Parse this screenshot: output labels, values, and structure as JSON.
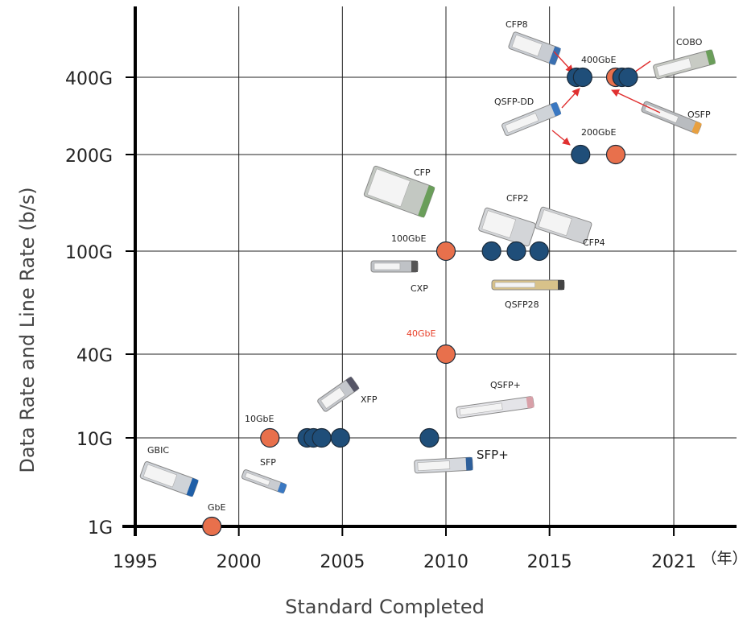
{
  "chart_data": {
    "type": "scatter",
    "xlabel": "Standard Completed",
    "ylabel": "Data Rate and Line Rate (b/s)",
    "x_unit_label": "（年）",
    "x_ticks": [
      1995,
      2000,
      2005,
      2010,
      2015,
      2021
    ],
    "y_categories": [
      "1G",
      "10G",
      "40G",
      "100G",
      "200G",
      "400G"
    ],
    "grid": true,
    "colors": {
      "ethernet": "#e8704c",
      "module": "#1f4e79",
      "arrow": "#e03030"
    },
    "series": [
      {
        "kind": "ethernet",
        "points": [
          {
            "x": 1998.7,
            "y": "1G"
          },
          {
            "x": 2001.5,
            "y": "10G"
          },
          {
            "x": 2010.0,
            "y": "40G"
          },
          {
            "x": 2010.0,
            "y": "100G"
          },
          {
            "x": 2018.2,
            "y": "200G"
          },
          {
            "x": 2018.2,
            "y": "400G"
          }
        ]
      },
      {
        "kind": "module",
        "points": [
          {
            "x": 2003.3,
            "y": "10G"
          },
          {
            "x": 2003.6,
            "y": "10G"
          },
          {
            "x": 2004.0,
            "y": "10G"
          },
          {
            "x": 2004.9,
            "y": "10G"
          },
          {
            "x": 2009.2,
            "y": "10G"
          },
          {
            "x": 2012.2,
            "y": "100G"
          },
          {
            "x": 2013.4,
            "y": "100G"
          },
          {
            "x": 2014.5,
            "y": "100G"
          },
          {
            "x": 2016.5,
            "y": "200G"
          },
          {
            "x": 2016.3,
            "y": "400G"
          },
          {
            "x": 2016.6,
            "y": "400G"
          },
          {
            "x": 2018.5,
            "y": "400G"
          },
          {
            "x": 2018.8,
            "y": "400G"
          }
        ]
      }
    ],
    "annotations": [
      {
        "text": "GbE",
        "style": "small"
      },
      {
        "text": "GBIC",
        "style": "small"
      },
      {
        "text": "SFP",
        "style": "small"
      },
      {
        "text": "10GbE",
        "style": "small"
      },
      {
        "text": "XFP",
        "style": "small"
      },
      {
        "text": "SFP+",
        "style": "big"
      },
      {
        "text": "QSFP+",
        "style": "small"
      },
      {
        "text": "40GbE",
        "style": "red"
      },
      {
        "text": "100GbE",
        "style": "small"
      },
      {
        "text": "CXP",
        "style": "small"
      },
      {
        "text": "CFP",
        "style": "small"
      },
      {
        "text": "CFP2",
        "style": "small"
      },
      {
        "text": "CFP4",
        "style": "small"
      },
      {
        "text": "QSFP28",
        "style": "small"
      },
      {
        "text": "CFP8",
        "style": "small"
      },
      {
        "text": "400GbE",
        "style": "small"
      },
      {
        "text": "COBO",
        "style": "small"
      },
      {
        "text": "QSFP-DD",
        "style": "small"
      },
      {
        "text": "200GbE",
        "style": "small"
      },
      {
        "text": "OSFP",
        "style": "small"
      }
    ]
  }
}
